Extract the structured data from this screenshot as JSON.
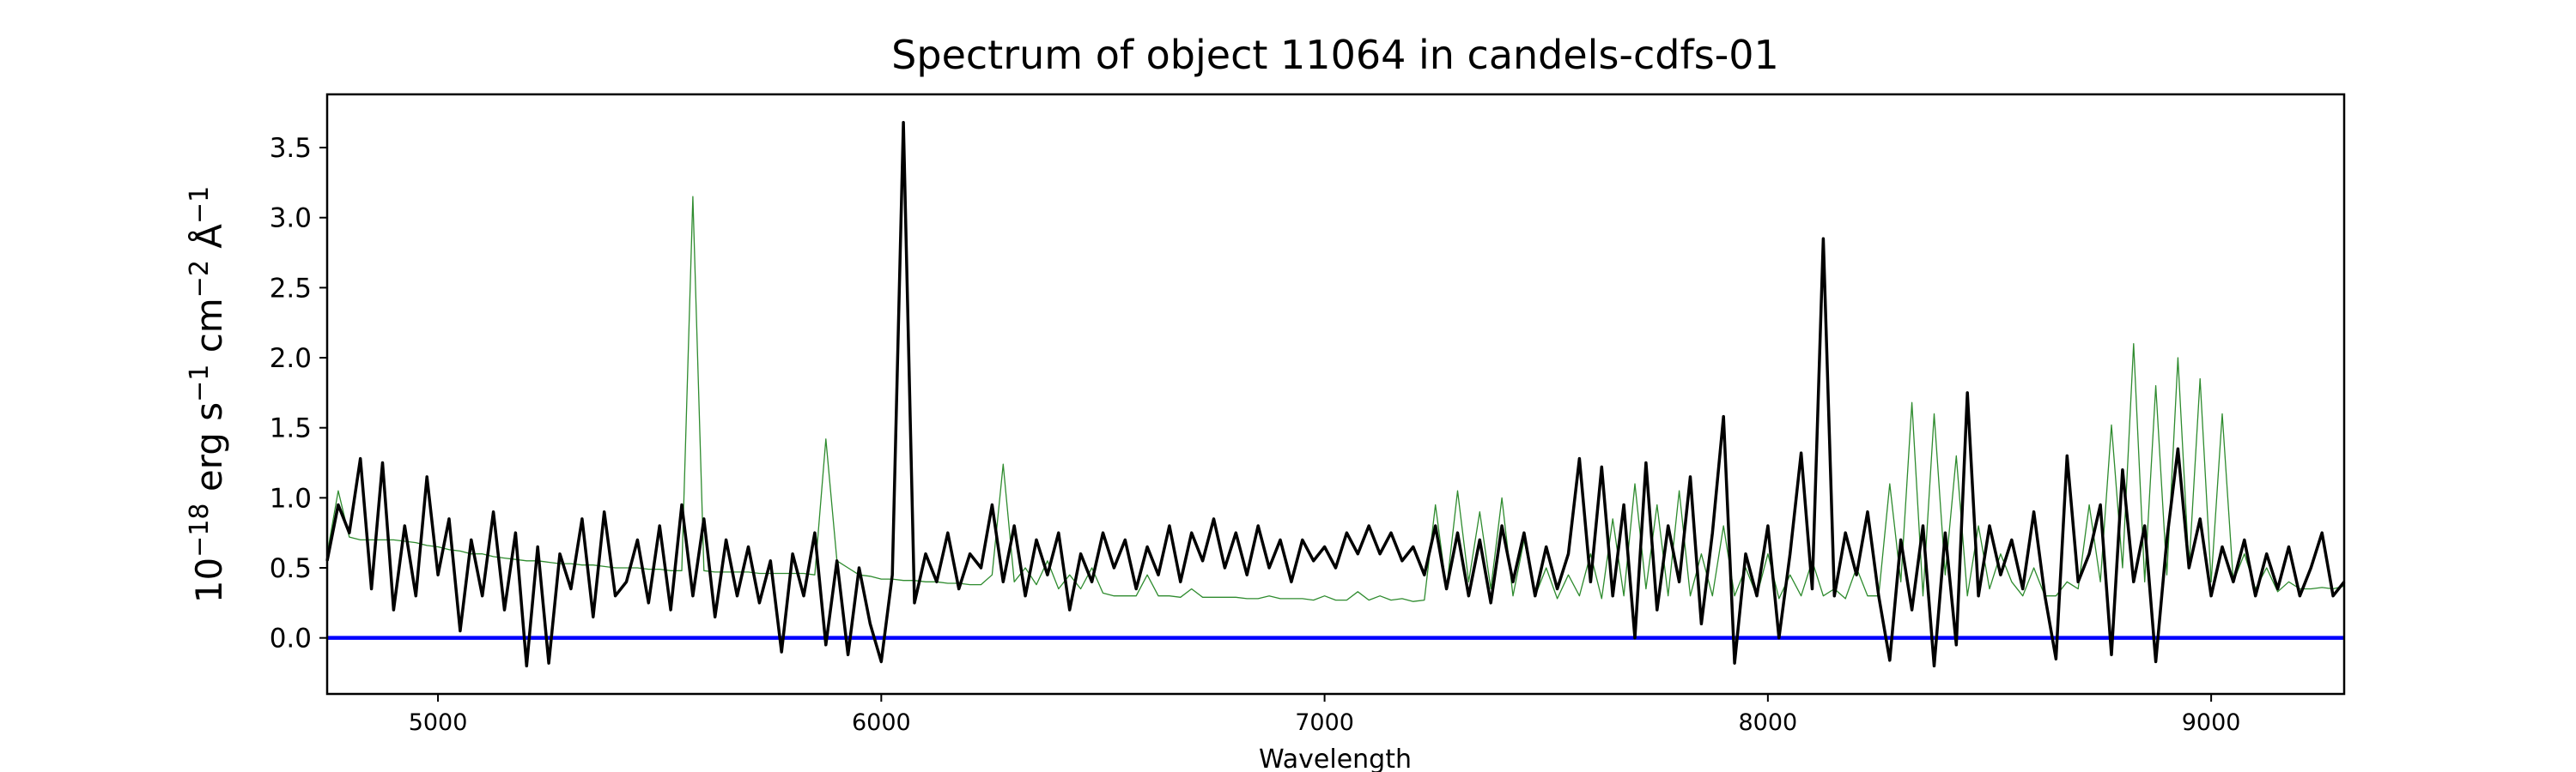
{
  "chart_data": {
    "type": "line",
    "title": "Spectrum of object 11064 in candels-cdfs-01",
    "xlabel": "Wavelength",
    "ylabel": "10^-18 erg s^-1 cm^-2 Å^-1",
    "ylabel_parts": {
      "base": "10",
      "exp1": "−18",
      "erg": " erg s",
      "exp2": "−1",
      "cm": " cm",
      "exp3": "−2",
      "ang": " Å",
      "exp4": "−1"
    },
    "xlim": [
      4750,
      9300
    ],
    "ylim": [
      -0.4,
      3.88
    ],
    "xticks": [
      5000,
      6000,
      7000,
      8000,
      9000
    ],
    "yticks": [
      "0.0",
      "0.5",
      "1.0",
      "1.5",
      "2.0",
      "2.5",
      "3.0",
      "3.5"
    ],
    "grid": false,
    "x": [
      4750,
      4775,
      4800,
      4825,
      4850,
      4875,
      4900,
      4925,
      4950,
      4975,
      5000,
      5025,
      5050,
      5075,
      5100,
      5125,
      5150,
      5175,
      5200,
      5225,
      5250,
      5275,
      5300,
      5325,
      5350,
      5375,
      5400,
      5425,
      5450,
      5475,
      5500,
      5525,
      5550,
      5575,
      5600,
      5625,
      5650,
      5675,
      5700,
      5725,
      5750,
      5775,
      5800,
      5825,
      5850,
      5875,
      5900,
      5925,
      5950,
      5975,
      6000,
      6025,
      6050,
      6075,
      6100,
      6125,
      6150,
      6175,
      6200,
      6225,
      6250,
      6275,
      6300,
      6325,
      6350,
      6375,
      6400,
      6425,
      6450,
      6475,
      6500,
      6525,
      6550,
      6575,
      6600,
      6625,
      6650,
      6675,
      6700,
      6725,
      6750,
      6775,
      6800,
      6825,
      6850,
      6875,
      6900,
      6925,
      6950,
      6975,
      7000,
      7025,
      7050,
      7075,
      7100,
      7125,
      7150,
      7175,
      7200,
      7225,
      7250,
      7275,
      7300,
      7325,
      7350,
      7375,
      7400,
      7425,
      7450,
      7475,
      7500,
      7525,
      7550,
      7575,
      7600,
      7625,
      7650,
      7675,
      7700,
      7725,
      7750,
      7775,
      7800,
      7825,
      7850,
      7875,
      7900,
      7925,
      7950,
      7975,
      8000,
      8025,
      8050,
      8075,
      8100,
      8125,
      8150,
      8175,
      8200,
      8225,
      8250,
      8275,
      8300,
      8325,
      8350,
      8375,
      8400,
      8425,
      8450,
      8475,
      8500,
      8525,
      8550,
      8575,
      8600,
      8625,
      8650,
      8675,
      8700,
      8725,
      8750,
      8775,
      8800,
      8825,
      8850,
      8875,
      8900,
      8925,
      8950,
      8975,
      9000,
      9025,
      9050,
      9075,
      9100,
      9125,
      9150,
      9175,
      9200,
      9225,
      9250,
      9275,
      9300
    ],
    "series": [
      {
        "role": "flux",
        "color": "#000000",
        "values": [
          0.55,
          0.95,
          0.75,
          1.28,
          0.35,
          1.25,
          0.2,
          0.8,
          0.3,
          1.15,
          0.45,
          0.85,
          0.05,
          0.7,
          0.3,
          0.9,
          0.2,
          0.75,
          -0.2,
          0.65,
          -0.18,
          0.6,
          0.35,
          0.85,
          0.15,
          0.9,
          0.3,
          0.4,
          0.7,
          0.25,
          0.8,
          0.2,
          0.95,
          0.3,
          0.85,
          0.15,
          0.7,
          0.3,
          0.65,
          0.25,
          0.55,
          -0.1,
          0.6,
          0.3,
          0.75,
          -0.05,
          0.55,
          -0.12,
          0.5,
          0.1,
          -0.17,
          0.45,
          3.68,
          0.25,
          0.6,
          0.4,
          0.75,
          0.35,
          0.6,
          0.5,
          0.95,
          0.4,
          0.8,
          0.3,
          0.7,
          0.45,
          0.75,
          0.2,
          0.6,
          0.4,
          0.75,
          0.5,
          0.7,
          0.35,
          0.65,
          0.45,
          0.8,
          0.4,
          0.75,
          0.55,
          0.85,
          0.5,
          0.75,
          0.45,
          0.8,
          0.5,
          0.7,
          0.4,
          0.7,
          0.55,
          0.65,
          0.5,
          0.75,
          0.6,
          0.8,
          0.6,
          0.75,
          0.55,
          0.65,
          0.45,
          0.8,
          0.35,
          0.75,
          0.3,
          0.7,
          0.25,
          0.8,
          0.4,
          0.75,
          0.3,
          0.65,
          0.35,
          0.6,
          1.28,
          0.4,
          1.22,
          0.3,
          0.95,
          0.0,
          1.25,
          0.2,
          0.8,
          0.4,
          1.15,
          0.1,
          0.75,
          1.58,
          -0.18,
          0.6,
          0.3,
          0.8,
          0.0,
          0.6,
          1.32,
          0.35,
          2.85,
          0.3,
          0.75,
          0.45,
          0.9,
          0.3,
          -0.16,
          0.7,
          0.2,
          0.8,
          -0.2,
          0.75,
          -0.05,
          1.75,
          0.3,
          0.8,
          0.45,
          0.7,
          0.35,
          0.9,
          0.3,
          -0.15,
          1.3,
          0.4,
          0.6,
          0.95,
          -0.12,
          1.2,
          0.4,
          0.8,
          -0.17,
          0.7,
          1.35,
          0.5,
          0.85,
          0.3,
          0.65,
          0.4,
          0.7,
          0.3,
          0.6,
          0.35,
          0.65,
          0.3,
          0.5,
          0.75,
          0.3,
          0.4
        ]
      },
      {
        "role": "sky/error",
        "color": "#2e8b2e",
        "values": [
          0.6,
          1.05,
          0.72,
          0.7,
          0.7,
          0.7,
          0.7,
          0.69,
          0.68,
          0.66,
          0.65,
          0.63,
          0.62,
          0.6,
          0.6,
          0.58,
          0.57,
          0.56,
          0.55,
          0.55,
          0.54,
          0.53,
          0.53,
          0.52,
          0.52,
          0.51,
          0.5,
          0.5,
          0.5,
          0.49,
          0.49,
          0.48,
          0.48,
          3.15,
          0.48,
          0.47,
          0.47,
          0.47,
          0.47,
          0.46,
          0.46,
          0.46,
          0.46,
          0.46,
          0.45,
          1.42,
          0.55,
          0.5,
          0.45,
          0.44,
          0.42,
          0.42,
          0.41,
          0.41,
          0.4,
          0.4,
          0.39,
          0.39,
          0.38,
          0.38,
          0.45,
          1.24,
          0.4,
          0.5,
          0.38,
          0.55,
          0.35,
          0.45,
          0.35,
          0.5,
          0.32,
          0.3,
          0.3,
          0.3,
          0.45,
          0.3,
          0.3,
          0.29,
          0.35,
          0.29,
          0.29,
          0.29,
          0.29,
          0.28,
          0.28,
          0.3,
          0.28,
          0.28,
          0.28,
          0.27,
          0.3,
          0.27,
          0.27,
          0.33,
          0.27,
          0.3,
          0.27,
          0.28,
          0.26,
          0.27,
          0.95,
          0.35,
          1.05,
          0.4,
          0.9,
          0.35,
          1.0,
          0.3,
          0.7,
          0.3,
          0.5,
          0.28,
          0.45,
          0.3,
          0.6,
          0.28,
          0.85,
          0.3,
          1.1,
          0.35,
          0.95,
          0.3,
          1.05,
          0.3,
          0.6,
          0.3,
          0.8,
          0.3,
          0.5,
          0.3,
          0.6,
          0.28,
          0.45,
          0.3,
          0.55,
          0.3,
          0.35,
          0.28,
          0.5,
          0.3,
          0.3,
          1.1,
          0.4,
          1.68,
          0.3,
          1.6,
          0.45,
          1.3,
          0.3,
          0.8,
          0.35,
          0.6,
          0.4,
          0.3,
          0.5,
          0.3,
          0.3,
          0.4,
          0.35,
          0.95,
          0.4,
          1.52,
          0.5,
          2.1,
          0.4,
          1.8,
          0.45,
          2.0,
          0.5,
          1.85,
          0.4,
          1.6,
          0.4,
          0.6,
          0.35,
          0.5,
          0.33,
          0.4,
          0.35,
          0.35,
          0.36,
          0.35,
          0.37
        ]
      },
      {
        "role": "zero-line",
        "color": "#0000ff",
        "constant": 0.0
      }
    ]
  }
}
